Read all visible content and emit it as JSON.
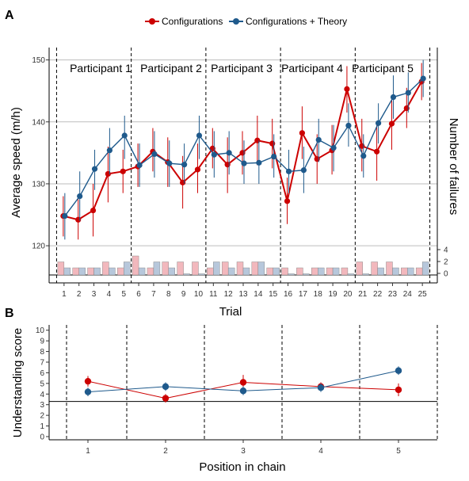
{
  "colors": {
    "configurations": "#cc0000",
    "configurations_theory": "#1f5a8c",
    "bar_configurations": "#f2b8bd",
    "bar_configurations_theory": "#b7c7db",
    "hline": "#bdbdbd"
  },
  "legend": {
    "items": [
      "Configurations",
      "Configurations + Theory"
    ]
  },
  "chart_data": [
    {
      "panel": "A",
      "type": "line",
      "xlabel": "Trial",
      "ylabel": "Average speed (m/h)",
      "y2label": "Number of failures",
      "xlim": [
        0,
        26
      ],
      "ylim": [
        114,
        152
      ],
      "yticks": [
        120,
        130,
        140,
        150
      ],
      "y2ticks": [
        0,
        2,
        4
      ],
      "x": [
        1,
        2,
        3,
        4,
        5,
        6,
        7,
        8,
        9,
        10,
        11,
        12,
        13,
        14,
        15,
        16,
        17,
        18,
        19,
        20,
        21,
        22,
        23,
        24,
        25
      ],
      "participants": [
        "Participant 1",
        "Participant 2",
        "Participant 3",
        "Participant 4",
        "Participant 5"
      ],
      "series": [
        {
          "name": "Configurations",
          "values": [
            124.8,
            124.2,
            125.7,
            131.6,
            132.0,
            132.8,
            135.2,
            133.5,
            130.2,
            132.3,
            135.7,
            133.1,
            135.0,
            137.0,
            136.5,
            127.2,
            138.2,
            134.0,
            135.4,
            145.3,
            136.1,
            135.2,
            139.7,
            142.2,
            146.5
          ],
          "err_low": [
            121.5,
            121.0,
            121.5,
            127.0,
            128.5,
            129.5,
            132.0,
            129.5,
            126.0,
            128.5,
            132.5,
            128.5,
            131.5,
            133.0,
            132.5,
            123.5,
            134.0,
            130.0,
            131.5,
            141.5,
            132.0,
            130.5,
            135.5,
            139.0,
            143.5
          ],
          "err_high": [
            128.0,
            127.5,
            130.0,
            136.0,
            135.5,
            136.5,
            139.0,
            137.5,
            134.5,
            136.5,
            139.0,
            137.5,
            138.5,
            141.0,
            140.5,
            131.0,
            142.5,
            138.0,
            139.5,
            149.0,
            140.5,
            140.0,
            144.0,
            145.5,
            149.5
          ],
          "failures": [
            2,
            1,
            1,
            2,
            1,
            3,
            1,
            2,
            2,
            2,
            1,
            2,
            2,
            2,
            1,
            1,
            1,
            1,
            1,
            1,
            2,
            2,
            2,
            1,
            1
          ]
        },
        {
          "name": "Configurations + Theory",
          "values": [
            124.8,
            128.0,
            132.4,
            135.4,
            137.8,
            133.0,
            134.8,
            133.3,
            133.1,
            137.8,
            134.7,
            135.0,
            133.3,
            133.4,
            134.4,
            132.0,
            132.2,
            137.1,
            135.8,
            139.4,
            134.5,
            139.8,
            144.0,
            144.7,
            147.0
          ],
          "err_low": [
            121.0,
            124.0,
            129.0,
            131.5,
            134.0,
            129.5,
            131.0,
            129.5,
            130.0,
            134.0,
            131.0,
            131.5,
            130.0,
            130.0,
            131.0,
            128.5,
            128.5,
            133.5,
            132.0,
            136.0,
            131.0,
            136.5,
            140.5,
            141.5,
            144.0
          ],
          "err_high": [
            128.5,
            132.0,
            135.5,
            139.0,
            141.0,
            136.5,
            138.5,
            137.0,
            136.5,
            141.0,
            138.5,
            138.5,
            137.0,
            137.0,
            138.0,
            135.5,
            136.0,
            140.5,
            139.5,
            143.0,
            138.0,
            143.0,
            147.5,
            148.0,
            150.0
          ],
          "failures": [
            1,
            1,
            1,
            1,
            2,
            1,
            2,
            1,
            0,
            0,
            2,
            1,
            1,
            2,
            1,
            0,
            0,
            1,
            1,
            0,
            0,
            1,
            1,
            1,
            2
          ]
        }
      ]
    },
    {
      "panel": "B",
      "type": "line",
      "xlabel": "Position in chain",
      "ylabel": "Understanding score",
      "xlim": [
        0.5,
        5.5
      ],
      "ylim": [
        -0.3,
        10.5
      ],
      "yticks": [
        0,
        1,
        2,
        3,
        4,
        5,
        6,
        7,
        8,
        9,
        10
      ],
      "categories": [
        "1",
        "2",
        "3",
        "4",
        "5"
      ],
      "reference_line": 3.3,
      "series": [
        {
          "name": "Configurations",
          "values": [
            5.2,
            3.6,
            5.1,
            4.7,
            4.4
          ],
          "err_low": [
            4.7,
            3.2,
            4.5,
            4.3,
            3.8
          ],
          "err_high": [
            5.7,
            4.0,
            5.8,
            5.1,
            5.0
          ]
        },
        {
          "name": "Configurations + Theory",
          "values": [
            4.2,
            4.7,
            4.3,
            4.6,
            6.2
          ],
          "err_low": [
            3.8,
            4.3,
            3.9,
            4.2,
            5.8
          ],
          "err_high": [
            4.6,
            5.1,
            4.7,
            5.0,
            6.6
          ]
        }
      ]
    }
  ],
  "panel_labels": [
    "A",
    "B"
  ]
}
